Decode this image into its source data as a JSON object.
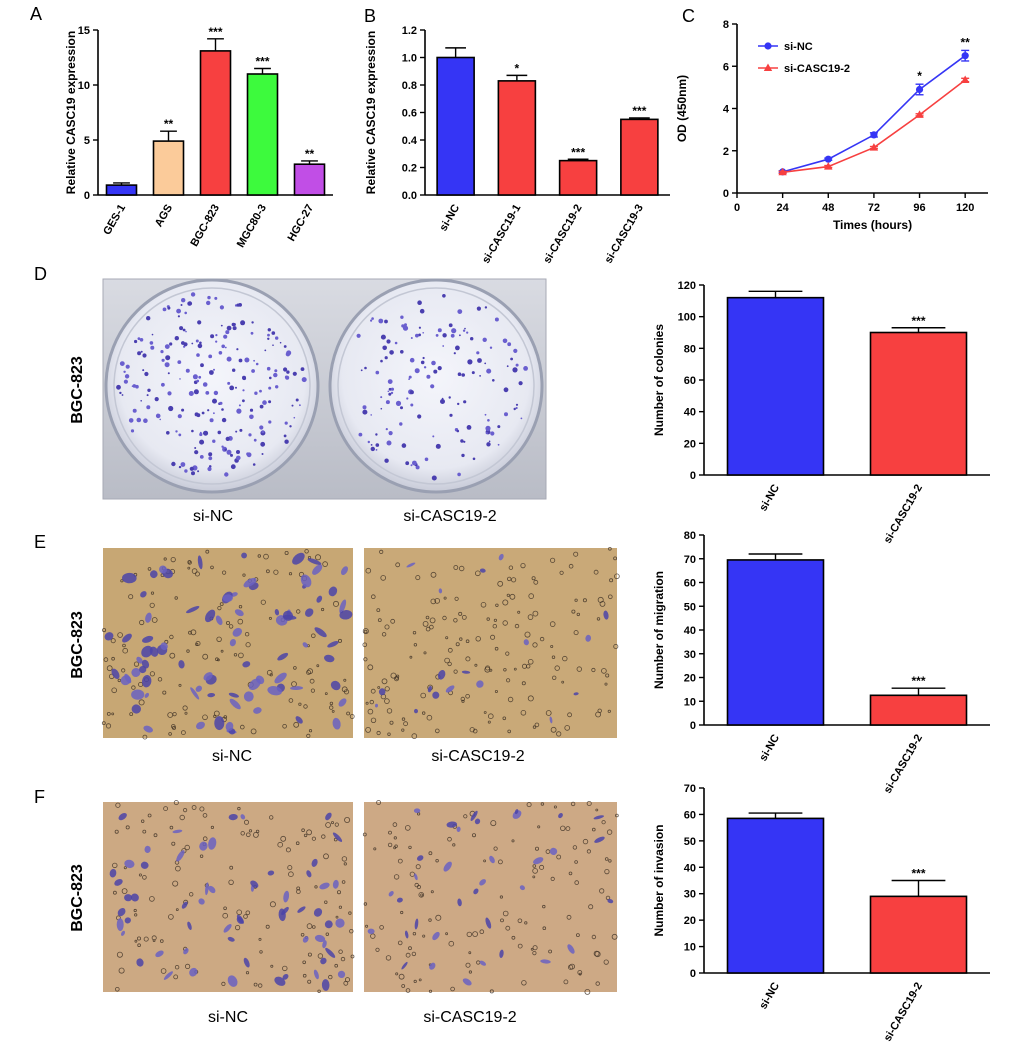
{
  "panels": {
    "A": "A",
    "B": "B",
    "C": "C",
    "D": "D",
    "E": "E",
    "F": "F"
  },
  "photos": {
    "side_label": "BGC-823",
    "left_caption": "si-NC",
    "right_caption": "si-CASC19-2"
  },
  "chart_data": [
    {
      "id": "A",
      "type": "bar",
      "ylabel": "Relative CASC19 expression",
      "xlabel": "",
      "ylim": [
        0,
        15
      ],
      "yticks": [
        0,
        5,
        10,
        15
      ],
      "categories": [
        "GES-1",
        "AGS",
        "BGC-823",
        "MGC80-3",
        "HGC-27"
      ],
      "values": [
        0.9,
        4.9,
        13.1,
        11.0,
        2.8
      ],
      "errors": [
        0.2,
        0.9,
        1.1,
        0.5,
        0.3
      ],
      "significance": [
        "",
        "**",
        "***",
        "***",
        "**"
      ],
      "colors": [
        "#3535f5",
        "#fbcb9a",
        "#f74040",
        "#3dfa3d",
        "#c14ee6"
      ],
      "grid": false
    },
    {
      "id": "B",
      "type": "bar",
      "ylabel": "Relative CASC19 expression",
      "xlabel": "",
      "ylim": [
        0,
        1.2
      ],
      "yticks": [
        "0.0",
        "0.2",
        "0.4",
        "0.6",
        "0.8",
        "1.0",
        "1.2"
      ],
      "categories": [
        "si-NC",
        "si-CASC19-1",
        "si-CASC19-2",
        "si-CASC19-3"
      ],
      "values": [
        1.0,
        0.83,
        0.25,
        0.55
      ],
      "errors": [
        0.07,
        0.04,
        0.01,
        0.01
      ],
      "significance": [
        "",
        "*",
        "***",
        "***"
      ],
      "colors": [
        "#3535f5",
        "#f74040",
        "#f74040",
        "#f74040"
      ],
      "grid": false
    },
    {
      "id": "C",
      "type": "line",
      "ylabel": "OD (450nm)",
      "xlabel": "Times (hours)",
      "xlim": [
        0,
        132
      ],
      "ylim": [
        0,
        8
      ],
      "xticks": [
        0,
        24,
        48,
        72,
        96,
        120
      ],
      "yticks": [
        0,
        2,
        4,
        6,
        8
      ],
      "x": [
        24,
        48,
        72,
        96,
        120
      ],
      "series": [
        {
          "name": "si-NC",
          "values": [
            1.0,
            1.6,
            2.75,
            4.9,
            6.5
          ],
          "errors": [
            0.05,
            0.05,
            0.1,
            0.25,
            0.25
          ],
          "color": "#3535f5",
          "marker": "circle"
        },
        {
          "name": "si-CASC19-2",
          "values": [
            0.98,
            1.25,
            2.15,
            3.7,
            5.35
          ],
          "errors": [
            0.05,
            0.05,
            0.05,
            0.05,
            0.08
          ],
          "color": "#f74040",
          "marker": "triangle"
        }
      ],
      "significance": [
        "",
        "",
        "",
        "*",
        "**"
      ],
      "legend": "top-left",
      "grid": false
    },
    {
      "id": "D",
      "type": "bar",
      "ylabel": "Number of colonies",
      "xlabel": "",
      "ylim": [
        0,
        120
      ],
      "yticks": [
        0,
        20,
        40,
        60,
        80,
        100,
        120
      ],
      "categories": [
        "si-NC",
        "si-CASC19-2"
      ],
      "values": [
        112,
        90
      ],
      "errors": [
        4,
        3
      ],
      "significance": [
        "",
        "***"
      ],
      "colors": [
        "#3535f5",
        "#f74040"
      ],
      "grid": false
    },
    {
      "id": "E",
      "type": "bar",
      "ylabel": "Number of migration",
      "xlabel": "",
      "ylim": [
        0,
        80
      ],
      "yticks": [
        0,
        10,
        20,
        30,
        40,
        50,
        60,
        70,
        80
      ],
      "categories": [
        "si-NC",
        "si-CASC19-2"
      ],
      "values": [
        69.5,
        12.5
      ],
      "errors": [
        2.5,
        3
      ],
      "significance": [
        "",
        "***"
      ],
      "colors": [
        "#3535f5",
        "#f74040"
      ],
      "grid": false
    },
    {
      "id": "F",
      "type": "bar",
      "ylabel": "Number of invasion",
      "xlabel": "",
      "ylim": [
        0,
        70
      ],
      "yticks": [
        0,
        10,
        20,
        30,
        40,
        50,
        60,
        70
      ],
      "categories": [
        "si-NC",
        "si-CASC19-2"
      ],
      "values": [
        58.5,
        29
      ],
      "errors": [
        2,
        6
      ],
      "significance": [
        "",
        "***"
      ],
      "colors": [
        "#3535f5",
        "#f74040"
      ],
      "grid": false
    }
  ]
}
